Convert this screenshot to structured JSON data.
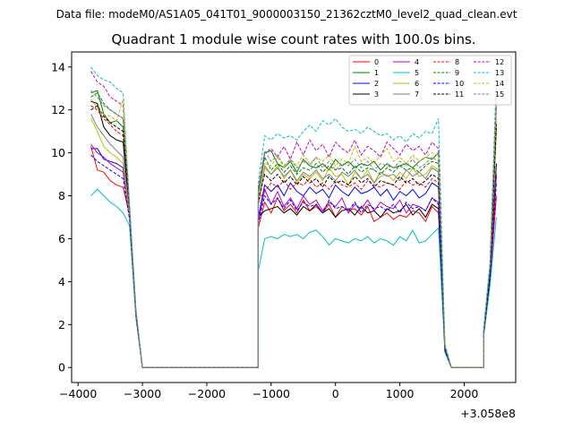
{
  "figure": {
    "suptitle": "Data file: modeM0/AS1A05_041T01_9000003150_21362cztM0_level2_quad_clean.evt",
    "title": "Quadrant 1 module wise count rates with 100.0s bins.",
    "x_offset_label": "+3.058e8"
  },
  "chart_data": {
    "type": "line",
    "title": "Quadrant 1 module wise count rates with 100.0s bins.",
    "xlabel": "",
    "ylabel": "",
    "x_offset": "+3.058e8",
    "xlim": [
      -4100,
      2800
    ],
    "ylim": [
      -0.7,
      14.7
    ],
    "xticks": [
      -4000,
      -3000,
      -2000,
      -1000,
      0,
      1000,
      2000
    ],
    "yticks": [
      0,
      2,
      4,
      6,
      8,
      10,
      12,
      14
    ],
    "legend_position": "top-right",
    "grid": false,
    "series": [
      {
        "name": "0",
        "color": "#ff0000",
        "dash": "solid",
        "seg1": [
          10.3,
          9.2,
          9.1,
          8.7,
          8.5,
          8.4,
          7.1,
          2.5,
          0.0
        ],
        "seg2": [
          6.5,
          7.7,
          7.2,
          7.9,
          7.3,
          7.6,
          7.2,
          7.8,
          7.3,
          7.5,
          7.2,
          7.6,
          7.0,
          7.5,
          7.3,
          7.4,
          7.1,
          7.5,
          6.8,
          7.0,
          7.2,
          6.9,
          7.1,
          7.0,
          7.3,
          7.2,
          6.8,
          7.5,
          7.2,
          0.8,
          0.0
        ],
        "seg3": [
          1.5,
          4.0,
          8.0
        ]
      },
      {
        "name": "1",
        "color": "#008000",
        "dash": "solid",
        "seg1": [
          12.8,
          12.9,
          11.8,
          11.4,
          11.5,
          11.2,
          7.2,
          2.5,
          0.0
        ],
        "seg2": [
          8.0,
          10.0,
          10.1,
          9.5,
          9.3,
          9.6,
          9.1,
          9.7,
          9.4,
          9.3,
          9.5,
          9.2,
          9.7,
          9.4,
          9.6,
          9.3,
          9.5,
          9.4,
          9.6,
          9.2,
          9.5,
          9.3,
          9.4,
          9.5,
          9.3,
          9.6,
          9.8,
          9.7,
          10.0,
          1.0,
          0.0
        ],
        "seg3": [
          1.6,
          4.5,
          12.2
        ]
      },
      {
        "name": "2",
        "color": "#0000ff",
        "dash": "solid",
        "seg1": [
          10.2,
          10.2,
          9.7,
          9.6,
          9.5,
          9.3,
          7.1,
          2.5,
          0.0
        ],
        "seg2": [
          7.0,
          8.5,
          8.2,
          8.5,
          8.0,
          8.6,
          8.2,
          8.0,
          8.4,
          8.1,
          8.3,
          7.9,
          8.5,
          8.2,
          8.0,
          8.4,
          8.1,
          8.2,
          8.4,
          8.0,
          8.3,
          7.8,
          8.2,
          8.0,
          8.3,
          7.9,
          8.1,
          8.6,
          8.4,
          0.9,
          0.0
        ],
        "seg3": [
          1.5,
          4.2,
          9.0
        ]
      },
      {
        "name": "3",
        "color": "#000000",
        "dash": "solid",
        "seg1": [
          12.4,
          12.3,
          11.2,
          10.8,
          10.6,
          10.5,
          7.2,
          2.5,
          0.0
        ],
        "seg2": [
          7.0,
          7.3,
          7.4,
          7.5,
          7.2,
          7.4,
          7.1,
          7.5,
          7.3,
          7.6,
          7.2,
          7.4,
          7.0,
          7.3,
          7.4,
          7.1,
          7.5,
          7.2,
          7.3,
          7.0,
          7.4,
          7.2,
          7.3,
          7.6,
          7.1,
          7.4,
          7.0,
          7.6,
          7.4,
          0.9,
          0.0
        ],
        "seg3": [
          1.5,
          4.3,
          9.5
        ]
      },
      {
        "name": "4",
        "color": "#bf00bf",
        "dash": "solid",
        "seg1": [
          10.4,
          10.0,
          9.8,
          9.5,
          9.3,
          9.1,
          7.1,
          2.5,
          0.0
        ],
        "seg2": [
          6.8,
          8.3,
          7.6,
          8.2,
          7.5,
          7.9,
          7.4,
          8.0,
          7.6,
          7.8,
          7.3,
          7.7,
          7.5,
          7.9,
          7.2,
          7.6,
          7.4,
          7.8,
          7.3,
          7.7,
          7.5,
          7.4,
          7.8,
          7.2,
          7.6,
          7.5,
          7.3,
          7.9,
          7.7,
          0.9,
          0.0
        ],
        "seg3": [
          1.5,
          4.2,
          9.0
        ]
      },
      {
        "name": "5",
        "color": "#00bfbf",
        "dash": "solid",
        "seg1": [
          8.0,
          8.3,
          8.0,
          7.7,
          7.5,
          7.2,
          6.6,
          2.3,
          0.0
        ],
        "seg2": [
          4.5,
          6.0,
          6.1,
          6.0,
          6.2,
          6.1,
          6.2,
          6.0,
          6.3,
          6.4,
          6.1,
          5.7,
          6.0,
          5.9,
          5.8,
          6.0,
          5.9,
          6.1,
          5.8,
          6.0,
          5.9,
          5.7,
          6.1,
          5.9,
          6.4,
          5.8,
          5.9,
          6.2,
          6.5,
          0.7,
          0.0
        ],
        "seg3": [
          1.4,
          3.8,
          7.0
        ]
      },
      {
        "name": "6",
        "color": "#bfbf00",
        "dash": "solid",
        "seg1": [
          11.6,
          11.0,
          10.3,
          10.0,
          9.8,
          9.5,
          7.1,
          2.5,
          0.0
        ],
        "seg2": [
          7.5,
          9.3,
          9.0,
          9.4,
          8.8,
          9.2,
          8.6,
          9.0,
          8.8,
          9.1,
          8.7,
          9.3,
          8.9,
          9.0,
          8.5,
          9.1,
          8.8,
          9.2,
          8.6,
          8.9,
          9.0,
          8.7,
          9.1,
          8.8,
          9.3,
          8.9,
          9.0,
          9.4,
          9.2,
          0.9,
          0.0
        ],
        "seg3": [
          1.6,
          4.4,
          11.0
        ]
      },
      {
        "name": "7",
        "color": "#808080",
        "dash": "solid",
        "seg1": [
          11.8,
          11.2,
          10.8,
          10.4,
          10.1,
          9.8,
          7.2,
          2.5,
          0.0
        ],
        "seg2": [
          7.6,
          9.4,
          9.0,
          9.3,
          8.9,
          9.2,
          8.7,
          9.1,
          8.9,
          9.2,
          8.8,
          9.0,
          8.7,
          9.1,
          8.9,
          9.2,
          8.8,
          9.0,
          8.6,
          9.1,
          8.9,
          9.0,
          8.7,
          9.2,
          8.9,
          9.1,
          8.8,
          9.3,
          9.1,
          0.9,
          0.0
        ],
        "seg3": [
          1.6,
          4.4,
          11.2
        ]
      },
      {
        "name": "8",
        "color": "#ff0000",
        "dash": "dashed",
        "seg1": [
          12.2,
          12.0,
          11.6,
          11.3,
          11.0,
          10.8,
          7.3,
          2.5,
          0.0
        ],
        "seg2": [
          7.8,
          8.2,
          8.6,
          8.4,
          8.7,
          8.3,
          8.6,
          8.5,
          8.8,
          8.4,
          8.6,
          8.3,
          8.7,
          8.5,
          8.4,
          8.6,
          8.3,
          8.7,
          8.5,
          8.4,
          8.6,
          8.5,
          8.3,
          8.7,
          8.5,
          8.6,
          8.4,
          8.8,
          8.6,
          0.9,
          0.0
        ],
        "seg3": [
          1.6,
          4.5,
          11.5
        ]
      },
      {
        "name": "9",
        "color": "#008000",
        "dash": "dashed",
        "seg1": [
          12.6,
          12.8,
          12.3,
          12.0,
          11.8,
          11.6,
          7.4,
          2.6,
          0.0
        ],
        "seg2": [
          8.2,
          9.8,
          9.2,
          9.5,
          9.1,
          9.4,
          9.0,
          9.3,
          9.2,
          9.5,
          9.1,
          9.4,
          9.2,
          9.3,
          9.0,
          9.4,
          9.1,
          9.3,
          9.2,
          9.0,
          9.3,
          9.1,
          9.4,
          9.2,
          9.3,
          9.1,
          9.4,
          9.6,
          9.5,
          1.0,
          0.0
        ],
        "seg3": [
          1.6,
          4.5,
          12.4
        ]
      },
      {
        "name": "10",
        "color": "#0000ff",
        "dash": "dashed",
        "seg1": [
          9.9,
          9.6,
          9.4,
          9.2,
          9.0,
          8.8,
          6.9,
          2.4,
          0.0
        ],
        "seg2": [
          6.7,
          8.0,
          7.6,
          7.9,
          7.4,
          7.8,
          7.3,
          7.7,
          7.5,
          7.6,
          7.2,
          7.8,
          7.4,
          7.5,
          7.3,
          7.7,
          7.2,
          7.6,
          7.4,
          7.5,
          7.3,
          7.6,
          7.2,
          7.7,
          7.4,
          7.5,
          7.3,
          7.9,
          7.6,
          0.8,
          0.0
        ],
        "seg3": [
          1.5,
          4.1,
          8.6
        ]
      },
      {
        "name": "11",
        "color": "#000000",
        "dash": "dashed",
        "seg1": [
          12.0,
          12.2,
          11.7,
          11.4,
          11.2,
          11.0,
          7.3,
          2.5,
          0.0
        ],
        "seg2": [
          7.8,
          9.0,
          8.7,
          9.0,
          8.6,
          8.9,
          8.5,
          8.9,
          8.6,
          8.8,
          8.4,
          8.9,
          8.6,
          8.7,
          8.5,
          8.9,
          8.6,
          8.8,
          8.4,
          8.7,
          8.6,
          8.5,
          8.9,
          8.6,
          8.8,
          8.5,
          8.7,
          9.0,
          8.8,
          0.9,
          0.0
        ],
        "seg3": [
          1.6,
          4.4,
          11.3
        ]
      },
      {
        "name": "12",
        "color": "#bf00bf",
        "dash": "dashed",
        "seg1": [
          13.8,
          13.3,
          13.1,
          12.6,
          12.4,
          12.2,
          7.5,
          2.6,
          0.0
        ],
        "seg2": [
          8.2,
          10.0,
          10.2,
          9.8,
          10.3,
          9.7,
          10.5,
          9.9,
          10.6,
          10.1,
          10.4,
          9.8,
          10.5,
          10.2,
          10.0,
          10.6,
          9.9,
          10.3,
          10.1,
          9.8,
          10.5,
          10.2,
          9.9,
          10.4,
          10.1,
          10.3,
          9.9,
          10.5,
          10.2,
          1.0,
          0.0
        ],
        "seg3": [
          1.7,
          4.8,
          13.0
        ]
      },
      {
        "name": "13",
        "color": "#00bfbf",
        "dash": "dashed",
        "seg1": [
          14.0,
          13.6,
          13.4,
          13.3,
          13.0,
          12.8,
          7.6,
          2.7,
          0.0
        ],
        "seg2": [
          8.6,
          10.8,
          10.6,
          10.9,
          10.7,
          10.8,
          10.6,
          11.0,
          11.3,
          11.0,
          11.5,
          11.3,
          11.6,
          11.2,
          11.0,
          11.1,
          10.9,
          11.2,
          11.0,
          10.8,
          10.9,
          10.6,
          10.8,
          10.5,
          10.9,
          10.7,
          11.0,
          10.9,
          11.6,
          1.1,
          0.0
        ],
        "seg3": [
          1.8,
          4.9,
          13.6
        ]
      },
      {
        "name": "14",
        "color": "#bfbf00",
        "dash": "dashed",
        "seg1": [
          12.5,
          12.1,
          11.8,
          11.7,
          11.5,
          12.5,
          7.3,
          2.6,
          0.0
        ],
        "seg2": [
          8.0,
          9.5,
          9.4,
          9.8,
          9.3,
          9.7,
          9.4,
          9.9,
          9.5,
          9.8,
          9.6,
          9.9,
          9.4,
          9.7,
          9.5,
          10.3,
          9.6,
          9.8,
          9.5,
          9.9,
          10.2,
          9.6,
          9.8,
          9.5,
          9.9,
          9.6,
          9.8,
          10.0,
          9.9,
          1.0,
          0.0
        ],
        "seg3": [
          1.7,
          4.7,
          12.3
        ]
      },
      {
        "name": "15",
        "color": "#808080",
        "dash": "dashed",
        "seg1": [
          12.9,
          12.6,
          12.2,
          12.0,
          11.8,
          11.6,
          7.4,
          2.6,
          0.0
        ],
        "seg2": [
          8.4,
          10.1,
          9.6,
          9.9,
          9.4,
          9.7,
          9.3,
          9.6,
          9.4,
          9.8,
          9.3,
          9.6,
          9.2,
          9.5,
          9.4,
          9.7,
          9.3,
          9.6,
          9.2,
          9.5,
          9.4,
          9.3,
          9.6,
          9.4,
          9.7,
          9.3,
          9.5,
          9.8,
          9.6,
          1.0,
          0.0
        ],
        "seg3": [
          1.7,
          4.7,
          12.6
        ]
      }
    ],
    "segments": [
      {
        "x_start": -3800,
        "step": 100,
        "count": 9
      },
      {
        "x_start": -1200,
        "step": 100,
        "count": 31
      },
      {
        "x_start": 2300,
        "step": 100,
        "count": 3
      }
    ],
    "zero_gaps": [
      [
        -3200,
        -1200
      ],
      [
        1400,
        2300
      ]
    ]
  }
}
